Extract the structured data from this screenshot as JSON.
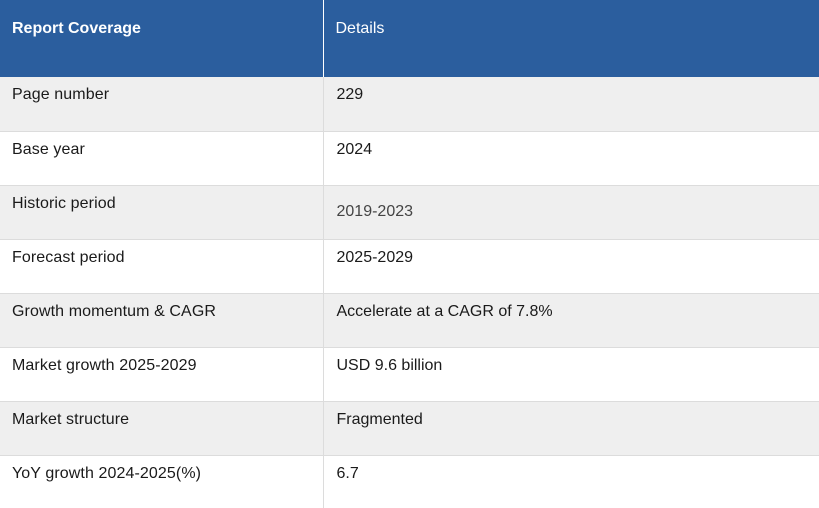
{
  "header": {
    "col1": "Report Coverage",
    "col2": "Details"
  },
  "rows": [
    {
      "label": "Page number",
      "value": "229"
    },
    {
      "label": "Base year",
      "value": "2024"
    },
    {
      "label": "Historic period",
      "value": "2019-2023"
    },
    {
      "label": "Forecast period",
      "value": "2025-2029"
    },
    {
      "label": "Growth momentum & CAGR",
      "value": "Accelerate at a CAGR of 7.8%"
    },
    {
      "label": "Market growth 2025-2029",
      "value": "USD 9.6 billion"
    },
    {
      "label": "Market structure",
      "value": "Fragmented"
    },
    {
      "label": "YoY growth 2024-2025(%)",
      "value": "6.7"
    }
  ]
}
